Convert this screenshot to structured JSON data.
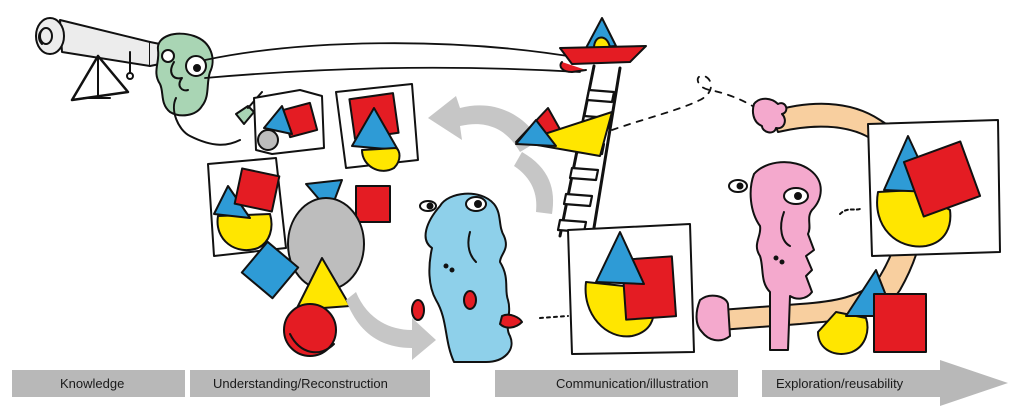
{
  "stages": [
    {
      "label": "Knowledge"
    },
    {
      "label": "Understanding/Reconstruction"
    },
    {
      "label": "Communication/illustration"
    },
    {
      "label": "Exploration/reusability"
    }
  ],
  "colors": {
    "red": "#e41c23",
    "blue": "#2e9bd6",
    "yellow": "#ffe600",
    "grey_arrow": "#c6c6c6",
    "bar": "#b8b8b8",
    "green_face": "#a9d5b4",
    "blue_face": "#8ed0ea",
    "pink_face": "#f4a9cd",
    "peach_arm": "#f8cf9f",
    "telescope": "#ececec",
    "ink": "#111111"
  },
  "icons": [
    "telescope-icon",
    "observer-face-icon",
    "ladder-icon",
    "boat-icon",
    "blue-face-icon",
    "pink-face-icon",
    "reaching-arm-icon",
    "shape-card-icon"
  ]
}
